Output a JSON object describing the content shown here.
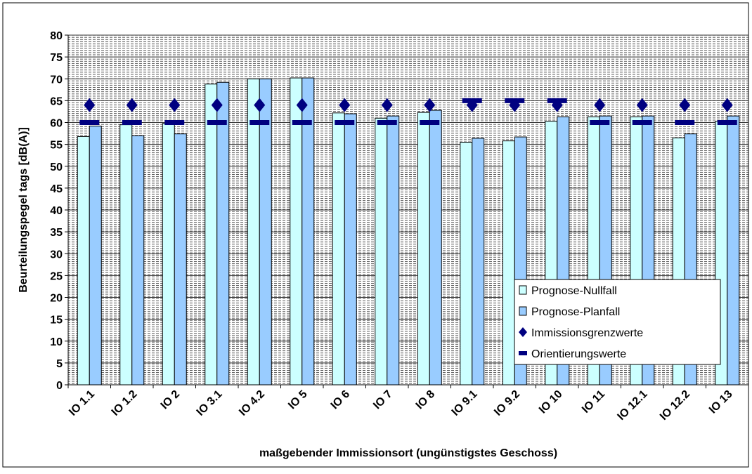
{
  "chart_data": {
    "type": "bar",
    "ylabel": "Beurteilungspegel tags [dB(A)]",
    "xlabel": "maßgebender Immissionsort (ungünstigstes Geschoss)",
    "categories": [
      "IO 1.1",
      "IO 1.2",
      "IO 2",
      "IO 3.1",
      "IO 4.2",
      "IO 5",
      "IO 6",
      "IO 7",
      "IO 8",
      "IO 9.1",
      "IO 9.2",
      "IO 10",
      "IO 11",
      "IO 12.1",
      "IO 12.2",
      "IO 13"
    ],
    "series": [
      {
        "name": "Prognose-Nullfall",
        "color": "#ccffff",
        "kind": "bar",
        "values": [
          56.8,
          59.5,
          59.8,
          68.8,
          70,
          70.2,
          62.2,
          61,
          62.3,
          55.5,
          55.8,
          60.3,
          61.3,
          61.3,
          56.5,
          60.3
        ]
      },
      {
        "name": "Prognose-Planfall",
        "color": "#99ccff",
        "kind": "bar",
        "values": [
          59.2,
          57,
          57.4,
          69.2,
          70,
          70.2,
          62,
          61.5,
          62.8,
          56.4,
          56.7,
          61.3,
          61.5,
          61.5,
          57.4,
          61.5
        ]
      },
      {
        "name": "Immissionsgrenzwerte",
        "color": "#000080",
        "kind": "diamond",
        "values": [
          64,
          64,
          64,
          64,
          64,
          64,
          64,
          64,
          64,
          64,
          64,
          64,
          64,
          64,
          64,
          64
        ]
      },
      {
        "name": "Orientierungswerte",
        "color": "#000080",
        "kind": "dash",
        "values": [
          60,
          60,
          60,
          60,
          60,
          60,
          60,
          60,
          60,
          65,
          65,
          65,
          60,
          60,
          60,
          60
        ]
      }
    ],
    "ylim": [
      0,
      80
    ],
    "yticks": [
      0,
      5,
      10,
      15,
      20,
      25,
      30,
      35,
      40,
      45,
      50,
      55,
      60,
      65,
      70,
      75,
      80
    ],
    "grid": true
  }
}
